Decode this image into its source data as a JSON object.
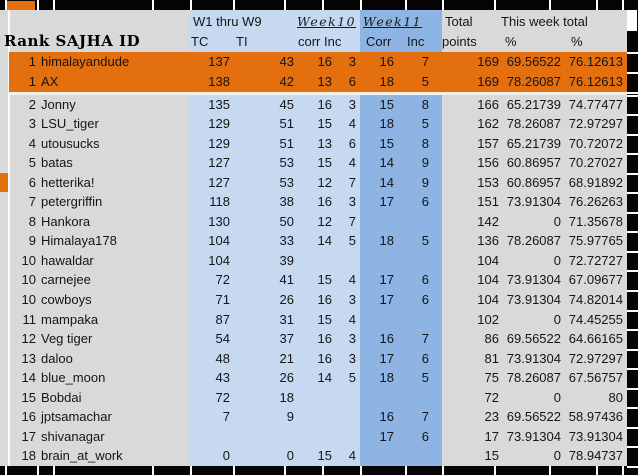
{
  "table": {
    "header_groups": {
      "w1_thru_w9": "W1 thru W9",
      "week10": "Week10",
      "week11": "Week11",
      "total": "Total",
      "this_week_total": "This week total"
    },
    "columns": {
      "rank_id": "Rank SAJHA ID",
      "tc": "TC",
      "ti": "TI",
      "w10_corr": "corr",
      "w10_inc": "Inc",
      "w11_corr": "Corr",
      "w11_inc": "Inc",
      "points": "points",
      "week_pct": "%",
      "total_pct": "%"
    },
    "rows": [
      {
        "rank": "1",
        "id": "himalayandude",
        "tc": "137",
        "ti": "43",
        "c10": "16",
        "i10": "3",
        "c11": "16",
        "i11": "7",
        "pts": "169",
        "wp": "69.56522",
        "tp": "76.12613",
        "highlight": true
      },
      {
        "rank": "1",
        "id": "AX",
        "tc": "138",
        "ti": "42",
        "c10": "13",
        "i10": "6",
        "c11": "18",
        "i11": "5",
        "pts": "169",
        "wp": "78.26087",
        "tp": "76.12613",
        "highlight": true
      },
      {
        "rank": "2",
        "id": "Jonny",
        "tc": "135",
        "ti": "45",
        "c10": "16",
        "i10": "3",
        "c11": "15",
        "i11": "8",
        "pts": "166",
        "wp": "65.21739",
        "tp": "74.77477",
        "highlight": false
      },
      {
        "rank": "3",
        "id": "LSU_tiger",
        "tc": "129",
        "ti": "51",
        "c10": "15",
        "i10": "4",
        "c11": "18",
        "i11": "5",
        "pts": "162",
        "wp": "78.26087",
        "tp": "72.97297",
        "highlight": false
      },
      {
        "rank": "4",
        "id": "utousucks",
        "tc": "129",
        "ti": "51",
        "c10": "13",
        "i10": "6",
        "c11": "15",
        "i11": "8",
        "pts": "157",
        "wp": "65.21739",
        "tp": "70.72072",
        "highlight": false
      },
      {
        "rank": "5",
        "id": "batas",
        "tc": "127",
        "ti": "53",
        "c10": "15",
        "i10": "4",
        "c11": "14",
        "i11": "9",
        "pts": "156",
        "wp": "60.86957",
        "tp": "70.27027",
        "highlight": false
      },
      {
        "rank": "6",
        "id": "hetterika!",
        "tc": "127",
        "ti": "53",
        "c10": "12",
        "i10": "7",
        "c11": "14",
        "i11": "9",
        "pts": "153",
        "wp": "60.86957",
        "tp": "68.91892",
        "highlight": false
      },
      {
        "rank": "7",
        "id": "petergriffin",
        "tc": "118",
        "ti": "38",
        "c10": "16",
        "i10": "3",
        "c11": "17",
        "i11": "6",
        "pts": "151",
        "wp": "73.91304",
        "tp": "76.26263",
        "highlight": false
      },
      {
        "rank": "8",
        "id": "Hankora",
        "tc": "130",
        "ti": "50",
        "c10": "12",
        "i10": "7",
        "c11": "",
        "i11": "",
        "pts": "142",
        "wp": "0",
        "tp": "71.35678",
        "highlight": false
      },
      {
        "rank": "9",
        "id": "Himalaya178",
        "tc": "104",
        "ti": "33",
        "c10": "14",
        "i10": "5",
        "c11": "18",
        "i11": "5",
        "pts": "136",
        "wp": "78.26087",
        "tp": "75.97765",
        "highlight": false
      },
      {
        "rank": "10",
        "id": "hawaldar",
        "tc": "104",
        "ti": "39",
        "c10": "",
        "i10": "",
        "c11": "",
        "i11": "",
        "pts": "104",
        "wp": "0",
        "tp": "72.72727",
        "highlight": false
      },
      {
        "rank": "10",
        "id": "carnejee",
        "tc": "72",
        "ti": "41",
        "c10": "15",
        "i10": "4",
        "c11": "17",
        "i11": "6",
        "pts": "104",
        "wp": "73.91304",
        "tp": "67.09677",
        "highlight": false
      },
      {
        "rank": "10",
        "id": "cowboys",
        "tc": "71",
        "ti": "26",
        "c10": "16",
        "i10": "3",
        "c11": "17",
        "i11": "6",
        "pts": "104",
        "wp": "73.91304",
        "tp": "74.82014",
        "highlight": false
      },
      {
        "rank": "11",
        "id": "mampaka",
        "tc": "87",
        "ti": "31",
        "c10": "15",
        "i10": "4",
        "c11": "",
        "i11": "",
        "pts": "102",
        "wp": "0",
        "tp": "74.45255",
        "highlight": false
      },
      {
        "rank": "12",
        "id": "Veg tiger",
        "tc": "54",
        "ti": "37",
        "c10": "16",
        "i10": "3",
        "c11": "16",
        "i11": "7",
        "pts": "86",
        "wp": "69.56522",
        "tp": "64.66165",
        "highlight": false
      },
      {
        "rank": "13",
        "id": "daloo",
        "tc": "48",
        "ti": "21",
        "c10": "16",
        "i10": "3",
        "c11": "17",
        "i11": "6",
        "pts": "81",
        "wp": "73.91304",
        "tp": "72.97297",
        "highlight": false
      },
      {
        "rank": "14",
        "id": "blue_moon",
        "tc": "43",
        "ti": "26",
        "c10": "14",
        "i10": "5",
        "c11": "18",
        "i11": "5",
        "pts": "75",
        "wp": "78.26087",
        "tp": "67.56757",
        "highlight": false
      },
      {
        "rank": "15",
        "id": "Bobdai",
        "tc": "72",
        "ti": "18",
        "c10": "",
        "i10": "",
        "c11": "",
        "i11": "",
        "pts": "72",
        "wp": "0",
        "tp": "80",
        "highlight": false
      },
      {
        "rank": "16",
        "id": "jptsamachar",
        "tc": "7",
        "ti": "9",
        "c10": "",
        "i10": "",
        "c11": "16",
        "i11": "7",
        "pts": "23",
        "wp": "69.56522",
        "tp": "58.97436",
        "highlight": false
      },
      {
        "rank": "17",
        "id": "shivanagar",
        "tc": "",
        "ti": "",
        "c10": "",
        "i10": "",
        "c11": "17",
        "i11": "6",
        "pts": "17",
        "wp": "73.91304",
        "tp": "73.91304",
        "highlight": false
      },
      {
        "rank": "18",
        "id": "brain_at_work",
        "tc": "0",
        "ti": "0",
        "c10": "15",
        "i10": "4",
        "c11": "",
        "i11": "",
        "pts": "15",
        "wp": "0",
        "tp": "78.94737",
        "highlight": false
      }
    ]
  },
  "colors": {
    "highlight_orange": "#e46f0e",
    "light_blue": "#c6d9f1",
    "medium_blue": "#8db4e2",
    "gray": "#d9d9d9",
    "margin_black": "#050505"
  }
}
